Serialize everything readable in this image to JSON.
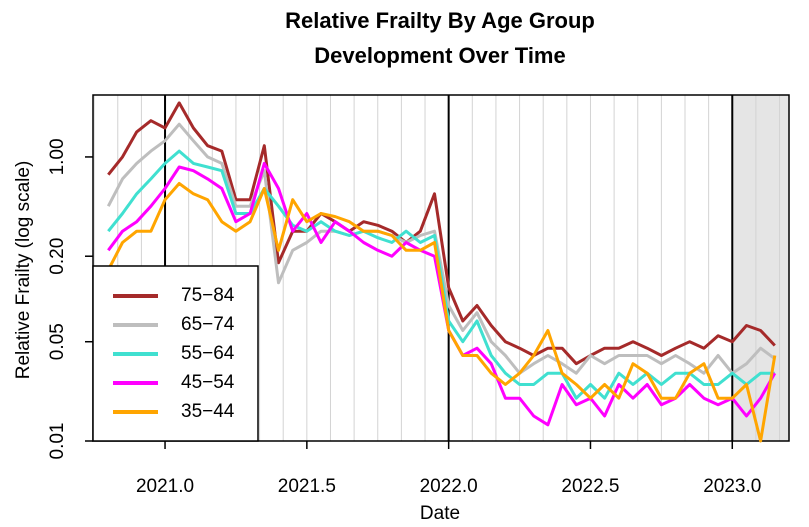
{
  "chart_data": {
    "type": "line",
    "title": "Relative Frailty By Age Group",
    "subtitle": "Development Over Time",
    "x_label": "Date",
    "y_label": "Relative Frailty (log scale)",
    "log_y": true,
    "legend": "bottom-left",
    "xlim": [
      2020.746,
      2023.2
    ],
    "ylim": [
      0.01,
      2.73
    ],
    "xticks": [
      {
        "value": 2021,
        "label": "2021.0"
      },
      2021.5,
      {
        "value": 2022,
        "label": "2022.0"
      },
      2022.5,
      {
        "value": 2023,
        "label": "2023.0"
      }
    ],
    "yticks": [
      0.01,
      0.05,
      {
        "value": 0.2,
        "label": "0.20"
      },
      {
        "value": 1,
        "label": "1.00"
      }
    ],
    "vlines": [
      2021,
      2022,
      2023
    ],
    "shaded_region": [
      2023,
      2023.2
    ],
    "x": [
      2020.8,
      2020.85,
      2020.9,
      2020.95,
      2021.0,
      2021.05,
      2021.1,
      2021.15,
      2021.2,
      2021.25,
      2021.3,
      2021.35,
      2021.4,
      2021.45,
      2021.5,
      2021.55,
      2021.6,
      2021.65,
      2021.7,
      2021.75,
      2021.8,
      2021.85,
      2021.9,
      2021.95,
      2022.0,
      2022.05,
      2022.1,
      2022.15,
      2022.2,
      2022.25,
      2022.3,
      2022.35,
      2022.4,
      2022.45,
      2022.5,
      2022.55,
      2022.6,
      2022.65,
      2022.7,
      2022.75,
      2022.8,
      2022.85,
      2022.9,
      2022.95,
      2023.0,
      2023.05,
      2023.1,
      2023.15
    ],
    "series": [
      {
        "name": "75−84",
        "color": "#a52a2a",
        "values": [
          0.75,
          1.0,
          1.5,
          1.8,
          1.6,
          2.4,
          1.6,
          1.2,
          1.1,
          0.5,
          0.5,
          1.2,
          0.18,
          0.3,
          0.3,
          0.4,
          0.35,
          0.3,
          0.35,
          0.33,
          0.3,
          0.25,
          0.3,
          0.55,
          0.12,
          0.07,
          0.09,
          0.065,
          0.05,
          0.045,
          0.04,
          0.045,
          0.045,
          0.035,
          0.04,
          0.045,
          0.045,
          0.05,
          0.045,
          0.04,
          0.045,
          0.05,
          0.045,
          0.055,
          0.05,
          0.065,
          0.06,
          0.047
        ]
      },
      {
        "name": "65−74",
        "color": "#bebebe",
        "values": [
          0.45,
          0.7,
          0.9,
          1.1,
          1.3,
          1.7,
          1.3,
          1.0,
          0.9,
          0.45,
          0.45,
          0.8,
          0.13,
          0.22,
          0.25,
          0.3,
          0.3,
          0.28,
          0.3,
          0.3,
          0.28,
          0.25,
          0.28,
          0.3,
          0.09,
          0.06,
          0.08,
          0.05,
          0.04,
          0.03,
          0.035,
          0.04,
          0.035,
          0.03,
          0.04,
          0.035,
          0.04,
          0.04,
          0.04,
          0.035,
          0.04,
          0.035,
          0.03,
          0.04,
          0.03,
          0.035,
          0.045,
          0.038
        ]
      },
      {
        "name": "55−64",
        "color": "#40e0d0",
        "values": [
          0.3,
          0.4,
          0.55,
          0.7,
          0.9,
          1.1,
          0.9,
          0.85,
          0.8,
          0.4,
          0.4,
          0.6,
          0.45,
          0.33,
          0.3,
          0.35,
          0.3,
          0.28,
          0.3,
          0.27,
          0.25,
          0.3,
          0.25,
          0.28,
          0.07,
          0.05,
          0.07,
          0.04,
          0.03,
          0.025,
          0.025,
          0.03,
          0.03,
          0.02,
          0.025,
          0.02,
          0.03,
          0.025,
          0.03,
          0.025,
          0.03,
          0.03,
          0.025,
          0.025,
          0.03,
          0.025,
          0.03,
          0.03
        ]
      },
      {
        "name": "45−54",
        "color": "#ff00ff",
        "values": [
          0.22,
          0.3,
          0.35,
          0.45,
          0.6,
          0.85,
          0.8,
          0.7,
          0.6,
          0.35,
          0.4,
          0.9,
          0.6,
          0.3,
          0.4,
          0.25,
          0.35,
          0.3,
          0.25,
          0.22,
          0.2,
          0.25,
          0.22,
          0.2,
          0.06,
          0.04,
          0.045,
          0.035,
          0.02,
          0.02,
          0.015,
          0.013,
          0.025,
          0.018,
          0.02,
          0.015,
          0.025,
          0.02,
          0.025,
          0.018,
          0.02,
          0.025,
          0.02,
          0.018,
          0.02,
          0.015,
          0.02,
          0.03
        ]
      },
      {
        "name": "35−44",
        "color": "#ffa500",
        "values": [
          0.16,
          0.25,
          0.3,
          0.3,
          0.5,
          0.65,
          0.55,
          0.5,
          0.35,
          0.3,
          0.35,
          0.6,
          0.22,
          0.5,
          0.35,
          0.4,
          0.38,
          0.35,
          0.3,
          0.3,
          0.28,
          0.22,
          0.22,
          0.25,
          0.06,
          0.04,
          0.04,
          0.03,
          0.025,
          0.03,
          0.04,
          0.06,
          0.03,
          0.025,
          0.02,
          0.025,
          0.02,
          0.035,
          0.03,
          0.02,
          0.02,
          0.03,
          0.035,
          0.02,
          0.02,
          0.025,
          0.01,
          0.04
        ]
      }
    ]
  }
}
